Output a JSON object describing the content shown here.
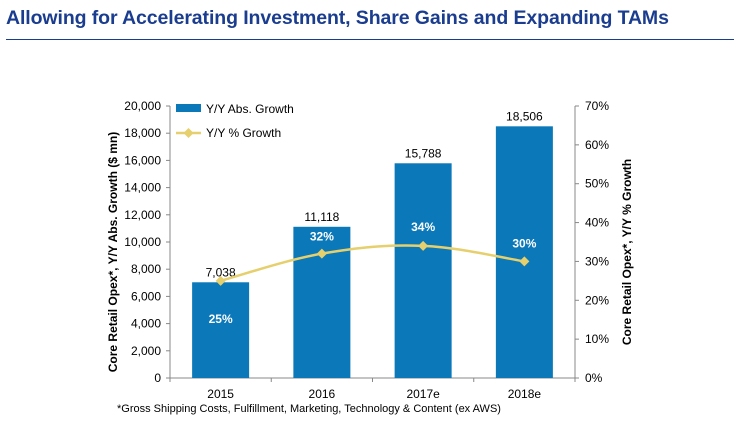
{
  "page_title": "Allowing for Accelerating Investment, Share Gains and Expanding TAMs",
  "footnote": "*Gross Shipping Costs, Fulfillment, Marketing, Technology & Content (ex AWS)",
  "colors": {
    "bar": "#0a78b9",
    "line": "#e6cf6d",
    "title": "#1b3d8f"
  },
  "chart_data": {
    "type": "bar",
    "categories": [
      "2015",
      "2016",
      "2017e",
      "2018e"
    ],
    "series": [
      {
        "name": "Y/Y Abs. Growth",
        "type": "bar",
        "axis": "left",
        "values": [
          7038,
          11118,
          15788,
          18506
        ],
        "labels": [
          "7,038",
          "11,118",
          "15,788",
          "18,506"
        ]
      },
      {
        "name": "Y/Y % Growth",
        "type": "line",
        "axis": "right",
        "values": [
          25,
          32,
          34,
          30
        ],
        "labels": [
          "25%",
          "32%",
          "34%",
          "30%"
        ]
      }
    ],
    "ylabel": "Core Retail Opex*, Y/Y Abs. Growth ($ mn)",
    "y2label": "Core Retail Opex*, Y/Y % Growth",
    "ylim": [
      0,
      20000
    ],
    "y2lim": [
      0,
      70
    ],
    "yticks": [
      "0",
      "2,000",
      "4,000",
      "6,000",
      "8,000",
      "10,000",
      "12,000",
      "14,000",
      "16,000",
      "18,000",
      "20,000"
    ],
    "y2ticks": [
      "0%",
      "10%",
      "20%",
      "30%",
      "40%",
      "50%",
      "60%",
      "70%"
    ],
    "legend_position": "top-left",
    "grid": false
  }
}
